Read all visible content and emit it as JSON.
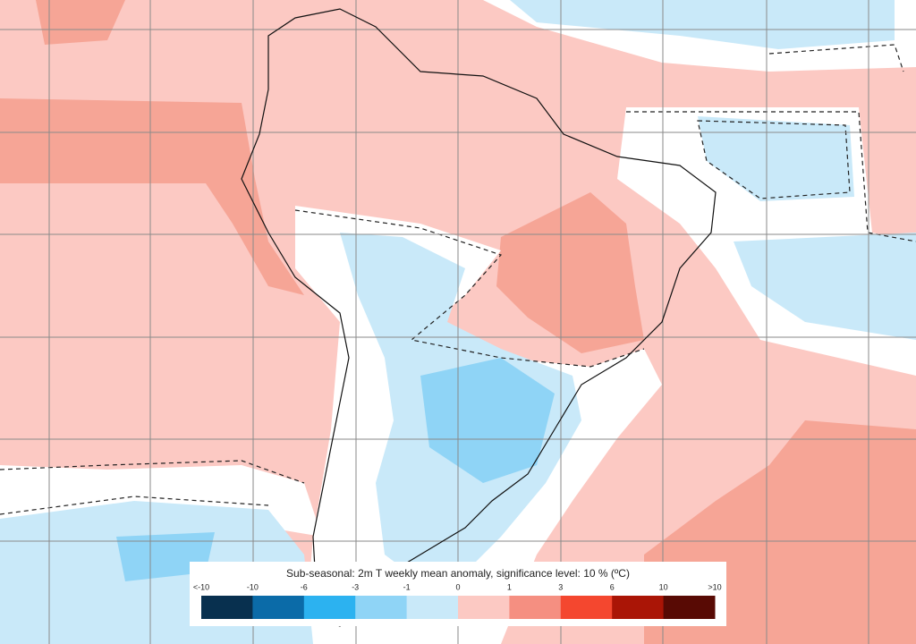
{
  "legend": {
    "title": "Sub-seasonal: 2m T weekly mean anomaly, significance level: 10 % (ºC)",
    "labels": [
      "<-10",
      "-10",
      "-6",
      "-3",
      "-1",
      "0",
      "1",
      "3",
      "6",
      "10",
      ">10"
    ],
    "colors": [
      "#08304f",
      "#0b6ba8",
      "#2cb2f0",
      "#8fd4f6",
      "#c9e9f9",
      "#fcc9c3",
      "#f58f81",
      "#f4472f",
      "#aa1506",
      "#580a04"
    ]
  }
}
